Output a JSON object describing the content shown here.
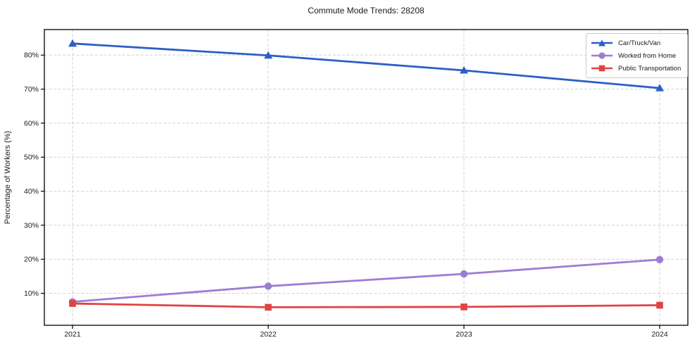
{
  "chart_data": {
    "type": "line",
    "title": "Commute Mode Trends: 28208",
    "xlabel": "",
    "ylabel": "Percentage of Workers (%)",
    "categories": [
      "2021",
      "2022",
      "2023",
      "2024"
    ],
    "series": [
      {
        "name": "Car/Truck/Van",
        "color": "#2b5fc7",
        "marker": "triangle",
        "values": [
          83.4,
          79.9,
          75.5,
          70.3
        ]
      },
      {
        "name": "Worked from Home",
        "color": "#9b7dd4",
        "marker": "circle",
        "values": [
          7.5,
          12.1,
          15.7,
          19.9
        ]
      },
      {
        "name": "Public Transportation",
        "color": "#e04343",
        "marker": "square",
        "values": [
          7.0,
          5.9,
          6.0,
          6.5
        ]
      }
    ],
    "ylim": [
      0.6,
      87.5
    ],
    "yticks": [
      10,
      20,
      30,
      40,
      50,
      60,
      70,
      80
    ],
    "ytick_suffix": "%",
    "grid": true,
    "grid_color": "#d0d0d0",
    "axes_color": "#000000",
    "text_color": "#1a1a1a",
    "legend_position": "upper right"
  }
}
